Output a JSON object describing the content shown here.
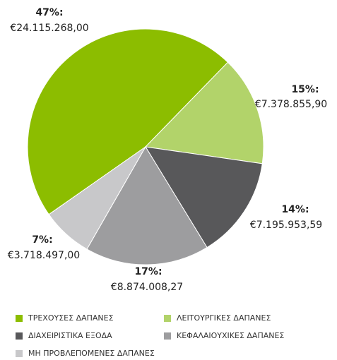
{
  "chart_data": {
    "type": "pie",
    "categories": [
      "ΤΡΕΧΟΥΣΕΣ ΔΑΠΑΝΕΣ",
      "ΛΕΙΤΟΥΡΓΙΚΕΣ ΔΑΠΑΝΕΣ",
      "ΔΙΑΧΕΙΡΙΣΤΙΚΑ ΕΞΟΔΑ",
      "ΚΕΦΑΛΑΙΟΥΧΙΚΕΣ ΔΑΠΑΝΕΣ",
      "ΜΗ ΠΡΟΒΛΕΠΟΜΕΝΕΣ ΔΑΠΑΝΕΣ"
    ],
    "values": [
      47,
      15,
      14,
      17,
      7
    ],
    "value_labels": [
      "47%:",
      "15%:",
      "14%:",
      "17%:",
      "7%:"
    ],
    "amount_labels": [
      "€24.115.268,00",
      "€7.378.855,90",
      "€7.195.953,59",
      "€8.874.008,27",
      "€3.718.497,00"
    ],
    "colors": [
      "#8cbd00",
      "#b2d36a",
      "#58585a",
      "#9d9d9f",
      "#c8c8ca"
    ],
    "legend": "bottom"
  }
}
